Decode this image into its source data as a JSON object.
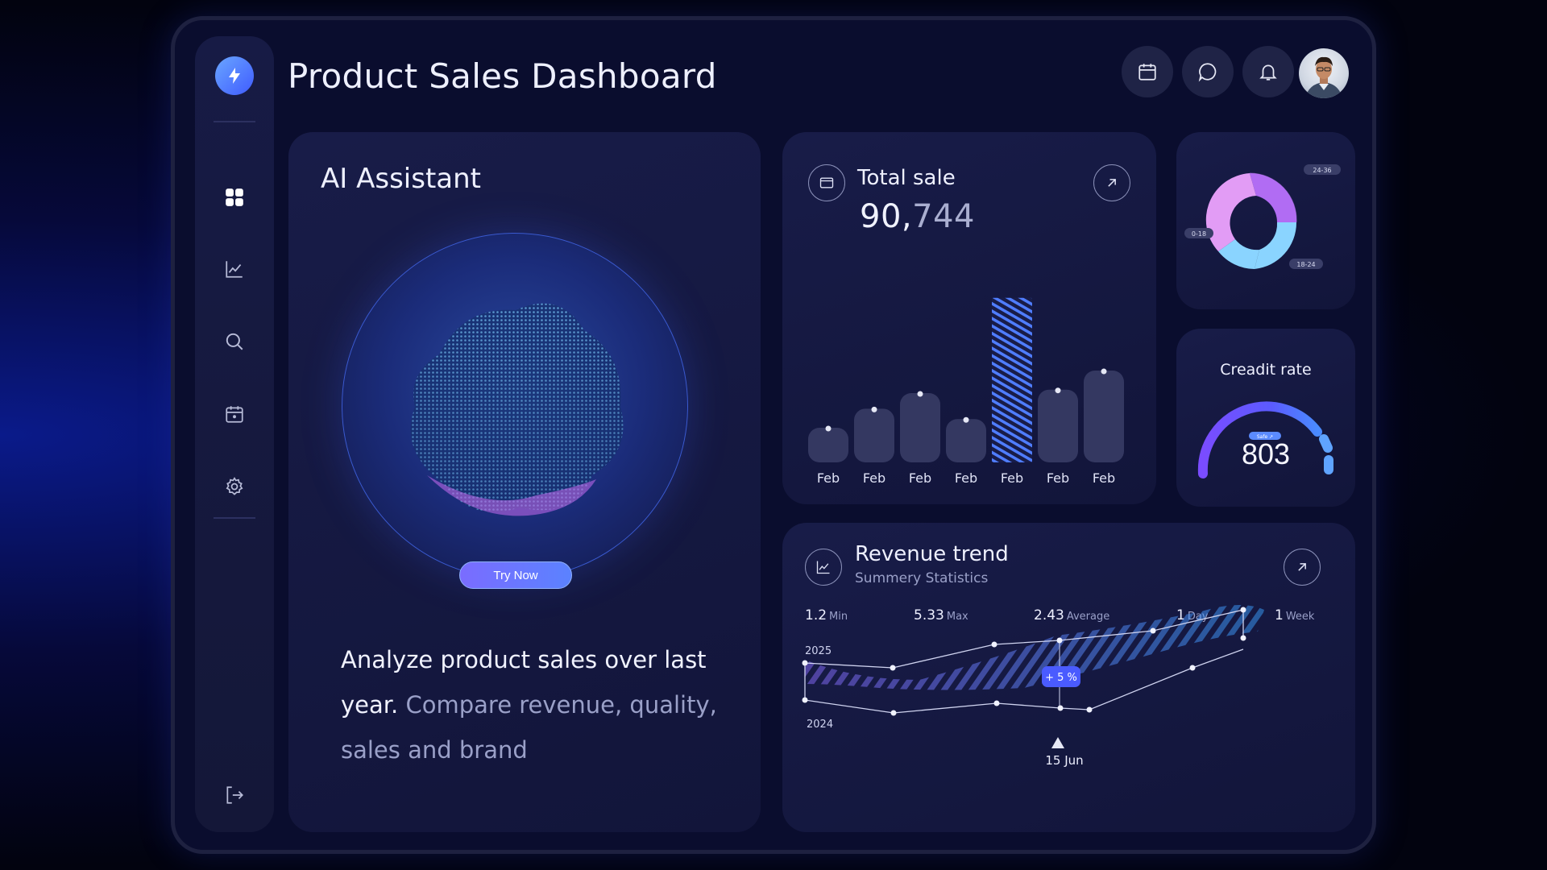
{
  "header": {
    "title": "Product Sales Dashboard"
  },
  "sidebar": {
    "items": [
      {
        "name": "dashboard",
        "icon": "grid-icon"
      },
      {
        "name": "analytics",
        "icon": "line-chart-icon"
      },
      {
        "name": "search",
        "icon": "search-icon"
      },
      {
        "name": "calendar",
        "icon": "calendar-icon"
      },
      {
        "name": "settings",
        "icon": "gear-icon"
      },
      {
        "name": "logout",
        "icon": "logout-icon"
      }
    ]
  },
  "topbar": {
    "icons": [
      "calendar-icon",
      "chat-icon",
      "bell-icon"
    ]
  },
  "ai_assistant": {
    "title": "AI Assistant",
    "button": "Try Now",
    "text_main": "Analyze product sales over last year.",
    "text_dim": " Compare revenue, quality, sales and brand"
  },
  "total_sale": {
    "title": "Total sale",
    "value_main": "90,",
    "value_dim": "744"
  },
  "donut": {
    "labels": [
      "24-36",
      "0-18",
      "18-24"
    ]
  },
  "credit": {
    "title": "Creadit rate",
    "value": "803",
    "badge": "Safe ↗"
  },
  "revenue": {
    "title": "Revenue trend",
    "subtitle": "Summery Statistics",
    "stats": [
      {
        "value": "1.2",
        "label": "Min"
      },
      {
        "value": "5.33",
        "label": "Max"
      },
      {
        "value": "2.43",
        "label": "Average"
      },
      {
        "value": "1",
        "label": "Day"
      },
      {
        "value": "1",
        "label": "Week"
      }
    ],
    "year_top": "2025",
    "year_bottom": "2024",
    "badge": "+ 5 %",
    "slider_label": "15 Jun"
  },
  "colors": {
    "accent": "#5b6dff",
    "bar": "#343861",
    "stripe": "#4f7dff",
    "donut_purple": "#b16cf3",
    "donut_pink": "#e29cf5",
    "donut_blue": "#8ad4ff"
  },
  "chart_data": {
    "type": "bar",
    "categories": [
      "Feb",
      "Feb",
      "Feb",
      "Feb",
      "Feb",
      "Feb",
      "Feb"
    ],
    "values": [
      20,
      31,
      40,
      25,
      95,
      42,
      53
    ],
    "highlight_index": 4
  }
}
